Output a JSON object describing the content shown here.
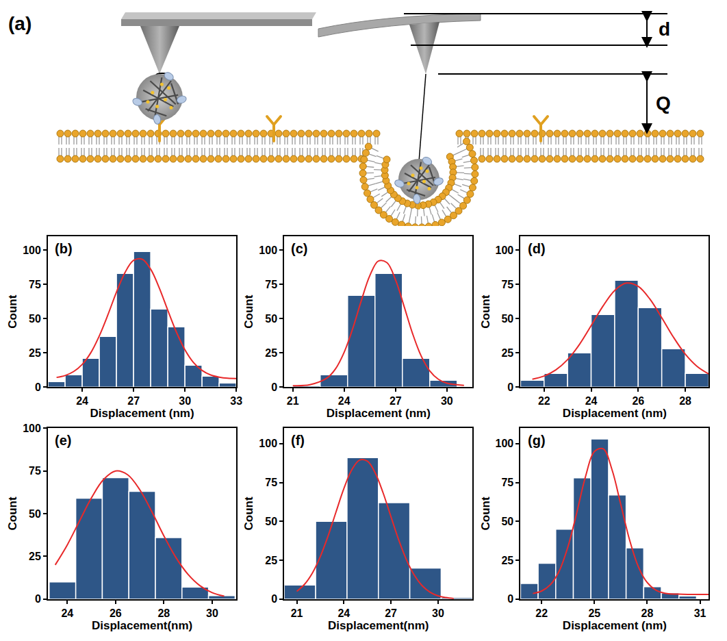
{
  "diagram": {
    "label": "(a)",
    "deflection_label": "d",
    "indentation_label": "Q"
  },
  "chart_data": [
    {
      "type": "histogram",
      "label": "(b)",
      "x_label": "Displacement (nm)",
      "y_label": "Count",
      "color": "#2e5687",
      "bins": [
        22,
        23,
        24,
        25,
        26,
        27,
        28,
        29,
        30,
        31,
        32,
        33
      ],
      "values": [
        4,
        9,
        21,
        37,
        83,
        99,
        57,
        44,
        16,
        8,
        3
      ],
      "fit": {
        "type": "line",
        "color": "#e8292a",
        "x": [
          22.5,
          23,
          23.5,
          24,
          24.5,
          25,
          25.5,
          26,
          26.5,
          27,
          27.5,
          28,
          28.5,
          29,
          29.5,
          30,
          30.5,
          31,
          31.5,
          32,
          32.5,
          33
        ],
        "values": [
          7,
          8.4,
          11.3,
          16.5,
          25,
          37.4,
          52.7,
          69.3,
          83.6,
          92.5,
          93.3,
          86,
          72.4,
          56,
          40.2,
          27.2,
          17.9,
          12.1,
          8.8,
          7.2,
          6.4,
          6.2
        ]
      },
      "xlim": [
        22,
        33
      ],
      "xticks": [
        24,
        27,
        30,
        33
      ],
      "ylim": [
        0,
        110
      ],
      "yticks": [
        0,
        25,
        50,
        75,
        100
      ]
    },
    {
      "type": "histogram",
      "label": "(c)",
      "x_label": "Displacement (nm)",
      "y_label": "Count",
      "color": "#2e5687",
      "bins": [
        21,
        22.6,
        24.2,
        25.8,
        27.4,
        29,
        30.6
      ],
      "values": [
        1,
        9,
        67,
        83,
        21,
        5
      ],
      "fit": {
        "type": "line",
        "color": "#e8292a",
        "x": [
          21,
          22,
          23,
          23.5,
          24,
          24.5,
          25,
          25.5,
          26,
          26.5,
          27,
          27.5,
          28,
          28.5,
          29,
          29.5,
          30,
          31
        ],
        "values": [
          1,
          1.7,
          6.6,
          13.4,
          25.4,
          42.7,
          63,
          81.4,
          92,
          90.8,
          78.2,
          58.9,
          38.9,
          22.6,
          11.8,
          5.7,
          2.8,
          1.2
        ]
      },
      "xlim": [
        20.5,
        31.5
      ],
      "xticks": [
        21,
        24,
        27,
        30
      ],
      "ylim": [
        0,
        110
      ],
      "yticks": [
        0,
        25,
        50,
        75,
        100
      ]
    },
    {
      "type": "histogram",
      "label": "(d)",
      "x_label": "Displacement (nm)",
      "y_label": "Count",
      "color": "#2e5687",
      "bins": [
        21,
        22,
        23,
        24,
        25,
        26,
        27,
        28,
        29
      ],
      "values": [
        5,
        10,
        25,
        53,
        78,
        58,
        28,
        10
      ],
      "fit": {
        "type": "line",
        "color": "#e8292a",
        "x": [
          21.5,
          22,
          22.5,
          23,
          23.5,
          24,
          24.5,
          25,
          25.5,
          26,
          26.5,
          27,
          27.5,
          28,
          28.5,
          29
        ],
        "values": [
          5.7,
          8,
          12.5,
          20,
          31,
          44.8,
          59,
          70.5,
          75.9,
          73.5,
          64.1,
          50.6,
          36.3,
          24,
          15.1,
          9.5
        ]
      },
      "xlim": [
        21,
        29
      ],
      "xticks": [
        22,
        24,
        26,
        28
      ],
      "ylim": [
        0,
        110
      ],
      "yticks": [
        0,
        25,
        50,
        75,
        100
      ]
    },
    {
      "type": "histogram",
      "label": "(e)",
      "x_label": "Displacement(nm)",
      "y_label": "Count",
      "color": "#2e5687",
      "bins": [
        23.25,
        24.35,
        25.45,
        26.55,
        27.65,
        28.75,
        29.85,
        30.95
      ],
      "values": [
        10,
        59,
        71,
        63,
        36,
        7,
        2
      ],
      "fit": {
        "type": "line",
        "color": "#e8292a",
        "x": [
          23.5,
          24,
          24.5,
          25,
          25.5,
          26,
          26.5,
          27,
          27.5,
          28,
          28.5,
          29,
          29.5,
          30,
          30.5
        ],
        "values": [
          20,
          31.7,
          45.5,
          59.2,
          69.9,
          74.9,
          72.7,
          64,
          51.2,
          37,
          24.3,
          14.5,
          7.8,
          3.8,
          1.7
        ]
      },
      "xlim": [
        23.2,
        31
      ],
      "xticks": [
        24,
        26,
        28,
        30
      ],
      "ylim": [
        0,
        100
      ],
      "yticks": [
        0,
        25,
        50,
        75,
        100
      ]
    },
    {
      "type": "histogram",
      "label": "(f)",
      "x_label": "Displacement(nm)",
      "y_label": "Count",
      "color": "#2e5687",
      "bins": [
        20.2,
        22.2,
        24.2,
        26.2,
        28.2,
        30.2,
        32.2
      ],
      "values": [
        9,
        50,
        91,
        62,
        20,
        1
      ],
      "fit": {
        "type": "line",
        "color": "#e8292a",
        "x": [
          21,
          21.5,
          22,
          22.5,
          23,
          23.5,
          24,
          24.5,
          25,
          25.5,
          26,
          26.5,
          27,
          27.5,
          28,
          28.5,
          29,
          29.5,
          30,
          30.5,
          31
        ],
        "values": [
          5,
          9.6,
          16.9,
          27.4,
          40.8,
          56.1,
          71.1,
          83.1,
          89.4,
          88.7,
          81.1,
          68.3,
          53,
          37.9,
          25,
          15.2,
          8.5,
          4.4,
          2.1,
          1,
          0.4
        ]
      },
      "xlim": [
        20.2,
        32.2
      ],
      "xticks": [
        21,
        24,
        27,
        30
      ],
      "ylim": [
        0,
        110
      ],
      "yticks": [
        0,
        25,
        50,
        75,
        100
      ]
    },
    {
      "type": "histogram",
      "label": "(g)",
      "x_label": "Displacement (nm)",
      "y_label": "Count",
      "color": "#2e5687",
      "bins": [
        20.8,
        21.8,
        22.8,
        23.8,
        24.8,
        25.8,
        26.8,
        27.8,
        28.8,
        29.8,
        30.8
      ],
      "values": [
        10,
        23,
        45,
        78,
        103,
        67,
        33,
        8,
        4,
        2
      ],
      "fit": {
        "type": "line",
        "color": "#e8292a",
        "x": [
          21.5,
          22,
          22.5,
          23,
          23.5,
          24,
          24.5,
          25,
          25.5,
          26,
          26.5,
          27,
          27.5,
          28,
          28.5,
          29,
          30,
          31,
          31.5
        ],
        "values": [
          3.6,
          5.2,
          9.3,
          18.1,
          33.9,
          55.8,
          79.1,
          95,
          96.7,
          83.2,
          60.7,
          37.9,
          20.7,
          10.6,
          5.7,
          3.8,
          3.1,
          3,
          3
        ]
      },
      "xlim": [
        20.8,
        31.5
      ],
      "xticks": [
        22,
        25,
        28,
        31
      ],
      "ylim": [
        0,
        110
      ],
      "yticks": [
        0,
        25,
        50,
        75,
        100
      ]
    }
  ]
}
